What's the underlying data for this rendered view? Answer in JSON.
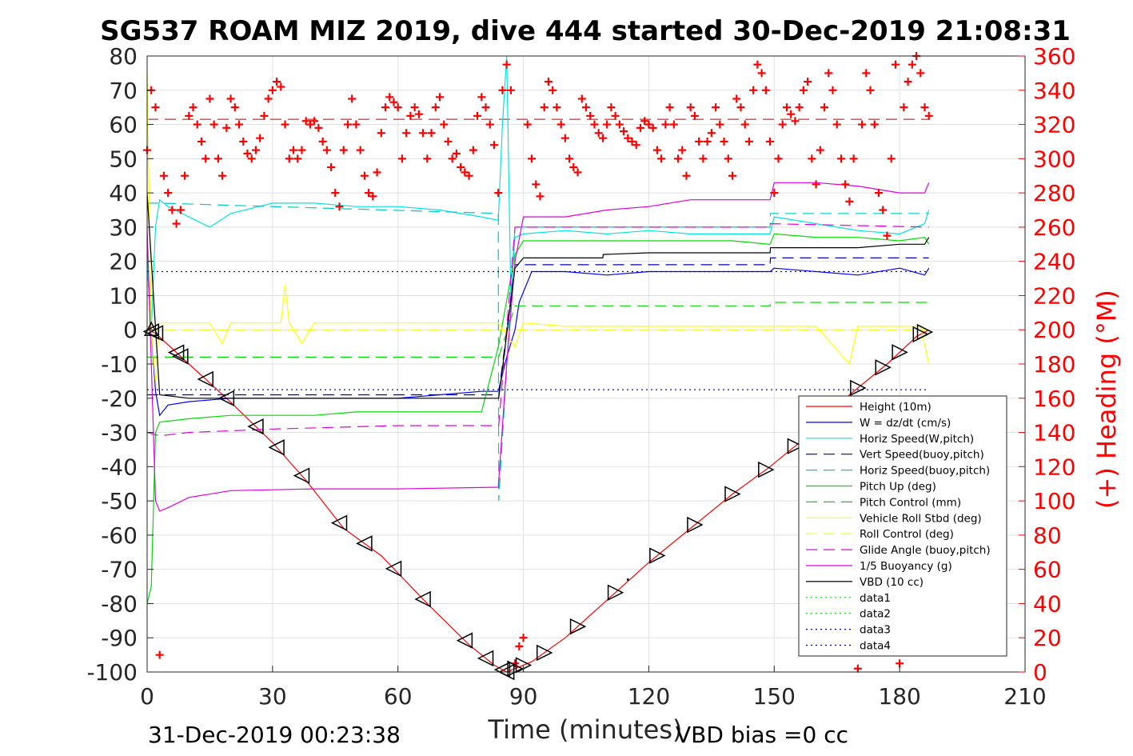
{
  "chart_data": {
    "type": "line",
    "title": "SG537 ROAM MIZ 2019, dive 444 started 30-Dec-2019 21:08:31",
    "xlabel": "Time (minutes)",
    "ylabel_right": "(+) Heading (°M)",
    "xlim": [
      0,
      210
    ],
    "ylim_left": [
      -100,
      80
    ],
    "ylim_right": [
      0,
      360
    ],
    "x_ticks": [
      0,
      30,
      60,
      90,
      120,
      150,
      180,
      210
    ],
    "y_left_ticks": [
      80,
      70,
      60,
      50,
      40,
      30,
      20,
      10,
      0,
      -10,
      -20,
      -30,
      -40,
      -50,
      -60,
      -70,
      -80,
      -90,
      -100
    ],
    "y_right_ticks": [
      360,
      340,
      320,
      300,
      280,
      260,
      240,
      220,
      200,
      180,
      160,
      140,
      120,
      100,
      80,
      60,
      40,
      20,
      0
    ],
    "grid": true,
    "legend_position": "bottom-right",
    "footer_left": "31-Dec-2019 00:23:38",
    "footer_right": "VBD bias =0 cc",
    "series": [
      {
        "name": "Height (10m)",
        "color": "#ff0000",
        "style": "solid",
        "x": [
          0,
          2,
          10,
          19,
          30,
          38,
          47,
          56,
          67,
          77,
          83,
          86,
          88,
          92,
          100,
          110,
          120,
          131,
          140,
          149,
          158,
          168,
          177,
          184,
          187
        ],
        "y": [
          0,
          -1,
          -10,
          -20,
          -33,
          -44,
          -58,
          -66,
          -80,
          -92,
          -98,
          -100,
          -99,
          -97,
          -90,
          -79,
          -68,
          -57,
          -48,
          -40,
          -31,
          -19,
          -10,
          -2,
          0
        ]
      },
      {
        "name": "W = dz/dt (cm/s)",
        "color": "#0000ff",
        "style": "solid",
        "x": [
          0,
          1,
          2,
          3,
          5,
          10,
          20,
          30,
          40,
          50,
          60,
          70,
          80,
          84,
          86,
          88,
          89,
          92,
          100,
          110,
          120,
          130,
          140,
          149,
          150,
          160,
          170,
          180,
          186,
          187
        ],
        "y": [
          20,
          0,
          -18,
          -25,
          -22,
          -21,
          -20,
          -20,
          -20,
          -20,
          -20,
          -19,
          -18,
          -18,
          -8,
          0,
          8,
          17,
          17,
          16,
          17,
          17,
          17,
          17,
          18,
          17,
          16,
          18,
          16,
          18
        ]
      },
      {
        "name": "Horiz Speed(W,pitch)",
        "color": "#00e5e5",
        "style": "solid",
        "x": [
          0,
          1,
          2,
          3,
          5,
          10,
          15,
          20,
          30,
          40,
          50,
          60,
          70,
          80,
          84,
          85,
          86,
          87,
          88,
          90,
          100,
          110,
          120,
          130,
          140,
          149,
          150,
          160,
          170,
          180,
          186,
          187
        ],
        "y": [
          20,
          0,
          30,
          38,
          36,
          33,
          30,
          34,
          37,
          37,
          36,
          36,
          35,
          33,
          32,
          60,
          80,
          10,
          27,
          28,
          29,
          28,
          29,
          28,
          28,
          28,
          33,
          31,
          29,
          28,
          31,
          35
        ]
      },
      {
        "name": "Vert Speed(buoy,pitch)",
        "color": "#0000b0",
        "style": "dashed",
        "x": [
          0,
          3,
          84,
          84.1,
          88,
          88.1,
          149,
          149.1,
          187
        ],
        "y": [
          -19,
          -19,
          -19,
          -19,
          19,
          19,
          19,
          21,
          21
        ]
      },
      {
        "name": "Horiz Speed(buoy,pitch)",
        "color": "#00c8c8",
        "style": "dashed",
        "x": [
          0,
          3,
          84,
          84.1,
          88,
          88.1,
          149,
          149.1,
          187
        ],
        "y": [
          37,
          37,
          34,
          -50,
          30,
          30,
          30,
          34,
          34
        ]
      },
      {
        "name": "Pitch Up (deg)",
        "color": "#00dd00",
        "style": "solid",
        "x": [
          0,
          1,
          2,
          3,
          10,
          20,
          30,
          40,
          50,
          60,
          70,
          80,
          84,
          88,
          90,
          100,
          110,
          120,
          130,
          140,
          149,
          150,
          160,
          170,
          180,
          186,
          187
        ],
        "y": [
          -80,
          -75,
          -30,
          -27,
          -26,
          -25,
          -25,
          -25,
          -24,
          -24,
          -24,
          -24,
          -5,
          22,
          26,
          26,
          26,
          26,
          26,
          26,
          25,
          28,
          27,
          27,
          26,
          27,
          25
        ]
      },
      {
        "name": "Pitch Control (mm)",
        "color": "#00dd00",
        "style": "dashed",
        "x": [
          0,
          3,
          84,
          84.1,
          88,
          88.1,
          149,
          149.1,
          187
        ],
        "y": [
          -8,
          -8,
          -8,
          -8,
          7,
          7,
          7,
          8,
          8
        ]
      },
      {
        "name": "Vehicle Roll Stbd (deg)",
        "color": "#ffff00",
        "style": "solid",
        "x": [
          0,
          1,
          2,
          3,
          5,
          15,
          18,
          20,
          32,
          33,
          34,
          37,
          40,
          50,
          60,
          70,
          80,
          84,
          88,
          90,
          100,
          110,
          120,
          130,
          140,
          150,
          160,
          168,
          170,
          180,
          185,
          187
        ],
        "y": [
          75,
          0,
          -15,
          2,
          2,
          2,
          -4,
          2,
          2,
          13,
          2,
          -4,
          2,
          2,
          2,
          2,
          2,
          2,
          -5,
          2,
          1,
          1,
          1,
          1,
          1,
          1,
          1,
          -10,
          1,
          1,
          1,
          -10
        ]
      },
      {
        "name": "Roll Control (deg)",
        "color": "#ffff00",
        "style": "dashed",
        "x": [
          0,
          187
        ],
        "y": [
          0,
          0
        ]
      },
      {
        "name": "Glide Angle (buoy,pitch)",
        "color": "#e000e0",
        "style": "dashed",
        "x": [
          0,
          3,
          10,
          30,
          60,
          84,
          84.1,
          88,
          88.1,
          149,
          149.1,
          187
        ],
        "y": [
          -30,
          -31,
          -30,
          -29,
          -28,
          -28,
          -28,
          30,
          30,
          30,
          31,
          30
        ]
      },
      {
        "name": "1/5 Buoyancy (g)",
        "color": "#e000e0",
        "style": "solid",
        "x": [
          0,
          2,
          3,
          5,
          10,
          20,
          40,
          60,
          84,
          86,
          88,
          90,
          100,
          110,
          120,
          130,
          140,
          149,
          150,
          160,
          170,
          180,
          186,
          187
        ],
        "y": [
          30,
          -50,
          -53,
          -52,
          -49,
          -47,
          -46.5,
          -46.5,
          -46,
          -10,
          20,
          33,
          33,
          35,
          36,
          38,
          38,
          38,
          43,
          43,
          42,
          40,
          40,
          43
        ]
      },
      {
        "name": "VBD (10 cc)",
        "color": "#000000",
        "style": "solid",
        "x": [
          0,
          3,
          10,
          84,
          84.1,
          88,
          90,
          100,
          109,
          109.1,
          120,
          130,
          140,
          149,
          149.1,
          170,
          180,
          186,
          187
        ],
        "y": [
          40,
          -19,
          -20,
          -20,
          -20,
          18,
          21,
          21,
          21,
          22,
          22.5,
          22.5,
          22.5,
          22.5,
          24,
          24,
          25,
          25,
          27
        ]
      },
      {
        "name": "data1",
        "color": "#00dd00",
        "style": "dotted",
        "x": [],
        "y": []
      },
      {
        "name": "data2",
        "color": "#00dd00",
        "style": "dotted",
        "x": [],
        "y": []
      },
      {
        "name": "data3",
        "color": "#0000b0",
        "style": "dotted",
        "x": [
          0,
          187
        ],
        "y": [
          -17.5,
          -17.5
        ]
      },
      {
        "name": "data4",
        "color": "#0000b0",
        "style": "dotted",
        "x": [
          0,
          187
        ],
        "y": [
          17,
          17
        ]
      }
    ],
    "heading_series": {
      "name": "Heading",
      "color": "#ff0000",
      "marker": "+",
      "axis": "right",
      "reference_heading": 323,
      "x": [
        0,
        1,
        2,
        3,
        4,
        5,
        6,
        7,
        8,
        9,
        10,
        11,
        12,
        13,
        14,
        15,
        16,
        17,
        18,
        19,
        20,
        21,
        22,
        23,
        24,
        25,
        26,
        27,
        28,
        29,
        30,
        31,
        32,
        33,
        34,
        35,
        36,
        37,
        38,
        39,
        40,
        41,
        42,
        43,
        44,
        45,
        46,
        47,
        48,
        49,
        50,
        51,
        52,
        53,
        54,
        55,
        56,
        57,
        58,
        59,
        60,
        61,
        62,
        63,
        64,
        65,
        66,
        67,
        68,
        69,
        70,
        71,
        72,
        73,
        74,
        75,
        76,
        77,
        78,
        79,
        80,
        81,
        82,
        83,
        84,
        85,
        86,
        87,
        88,
        89,
        90,
        91,
        92,
        93,
        94,
        95,
        96,
        97,
        98,
        99,
        100,
        101,
        102,
        103,
        104,
        105,
        106,
        107,
        108,
        109,
        110,
        111,
        112,
        113,
        114,
        115,
        116,
        117,
        118,
        119,
        120,
        121,
        122,
        123,
        124,
        125,
        126,
        127,
        128,
        129,
        130,
        131,
        132,
        133,
        134,
        135,
        136,
        137,
        138,
        139,
        140,
        141,
        142,
        143,
        144,
        145,
        146,
        147,
        148,
        149,
        150,
        151,
        152,
        153,
        154,
        155,
        156,
        157,
        158,
        159,
        160,
        161,
        162,
        163,
        164,
        165,
        166,
        167,
        168,
        169,
        170,
        171,
        172,
        173,
        174,
        175,
        176,
        177,
        178,
        179,
        180,
        181,
        182,
        183,
        184,
        185,
        186,
        187
      ],
      "y": [
        305,
        340,
        330,
        10,
        290,
        280,
        270,
        262,
        270,
        290,
        325,
        330,
        320,
        310,
        300,
        335,
        320,
        300,
        290,
        318,
        335,
        330,
        320,
        310,
        303,
        300,
        305,
        312,
        325,
        335,
        340,
        345,
        342,
        320,
        300,
        305,
        300,
        305,
        322,
        320,
        322,
        318,
        310,
        305,
        295,
        280,
        272,
        305,
        320,
        335,
        320,
        305,
        290,
        280,
        278,
        292,
        315,
        330,
        336,
        333,
        330,
        300,
        315,
        325,
        330,
        326,
        315,
        300,
        315,
        330,
        336,
        320,
        310,
        300,
        303,
        295,
        292,
        290,
        305,
        325,
        336,
        330,
        320,
        308,
        280,
        340,
        355,
        340,
        5,
        15,
        20,
        320,
        300,
        285,
        278,
        330,
        345,
        340,
        330,
        320,
        312,
        300,
        295,
        292,
        335,
        330,
        325,
        320,
        315,
        312,
        320,
        330,
        325,
        320,
        316,
        312,
        310,
        308,
        318,
        322,
        320,
        318,
        305,
        300,
        320,
        330,
        320,
        300,
        305,
        290,
        330,
        325,
        310,
        300,
        310,
        315,
        330,
        320,
        310,
        300,
        290,
        335,
        330,
        320,
        310,
        340,
        355,
        350,
        340,
        310,
        280,
        300,
        320,
        330,
        326,
        322,
        330,
        340,
        345,
        300,
        285,
        305,
        330,
        350,
        340,
        320,
        300,
        285,
        275,
        300,
        2,
        320,
        350,
        340,
        320,
        280,
        270,
        255,
        300,
        355,
        5,
        330,
        345,
        355,
        360,
        350,
        330,
        325
      ]
    },
    "waypoint_markers": {
      "descent_x": [
        1,
        2,
        7,
        8,
        14,
        19,
        26,
        31,
        37,
        46,
        52,
        59,
        66,
        76,
        81,
        85,
        86
      ],
      "ascent_x": [
        88,
        90,
        95,
        103,
        112,
        122,
        131,
        140,
        148,
        155,
        162,
        170,
        176,
        180,
        185,
        186
      ]
    }
  }
}
